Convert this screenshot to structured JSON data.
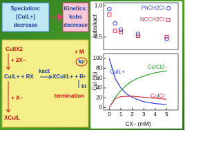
{
  "speciation_box": {
    "title": "Speciation:",
    "text": "[CuIL+]",
    "note": "decrease"
  },
  "kinetics_box": {
    "title": "Kinetics:",
    "text": "kobs",
    "note": "decrease"
  },
  "scheme": {
    "cu2": "CuIIX2",
    "plus2x": "+ 2X−",
    "main": "CuIL+ + RX",
    "kact": "kact",
    "product": "XCuIIL+ + R•",
    "monomer": "+ M",
    "kp": "kp",
    "kt": "kt",
    "termination": "termination",
    "plusx": "+ X−",
    "xcul": "XCuIL"
  },
  "chart_data": [
    {
      "type": "scatter",
      "ylabel": "kobs/kact",
      "xlim": [
        -0.5,
        6
      ],
      "ylim": [
        0.3,
        1.05
      ],
      "yticks": [
        {
          "value": 0.5,
          "label": "0.5"
        },
        {
          "value": 1,
          "label": "1.0"
        }
      ],
      "series": [
        {
          "name": "PhCH2Cl",
          "color": "#2b3bd6",
          "marker": "circle",
          "x": [
            0,
            0.5,
            1,
            2.5,
            5
          ],
          "values": [
            0.95,
            0.72,
            0.62,
            0.55,
            0.47
          ]
        },
        {
          "name": "NCCH2Cl",
          "color": "#d8304a",
          "marker": "square",
          "x": [
            0,
            0.5,
            1,
            2.5,
            5
          ],
          "values": [
            0.86,
            0.6,
            0.58,
            0.52,
            0.5
          ]
        }
      ]
    },
    {
      "type": "line",
      "ylabel": "CuI (%)",
      "xlabel": "CX− (mM)",
      "xlim": [
        -0.5,
        6
      ],
      "ylim": [
        -5,
        110
      ],
      "xticks": [
        0,
        1,
        2,
        3,
        4,
        5
      ],
      "yticks": [
        0,
        20,
        40,
        60,
        80,
        100
      ],
      "series": [
        {
          "name": "CuIL+",
          "color": "#2b3bd6",
          "x": [
            0,
            0.5,
            1,
            1.5,
            2,
            2.5,
            3,
            3.5,
            4,
            4.5,
            5
          ],
          "values": [
            100,
            60,
            40,
            28,
            21,
            16,
            12,
            10,
            8,
            7,
            6
          ]
        },
        {
          "name": "CuICl2−",
          "color": "#2ea02e",
          "x": [
            0,
            0.5,
            1,
            1.5,
            2,
            2.5,
            3,
            3.5,
            4,
            4.5,
            5
          ],
          "values": [
            0,
            20,
            35,
            46,
            54,
            60,
            64,
            68,
            71,
            73,
            75
          ]
        },
        {
          "name": "CuICl",
          "color": "#d8304a",
          "x": [
            0,
            0.5,
            1,
            1.5,
            2,
            2.5,
            3,
            3.5,
            4,
            4.5,
            5
          ],
          "values": [
            0,
            18,
            22,
            23,
            23,
            22,
            21,
            20,
            19,
            18,
            17
          ]
        }
      ]
    }
  ]
}
